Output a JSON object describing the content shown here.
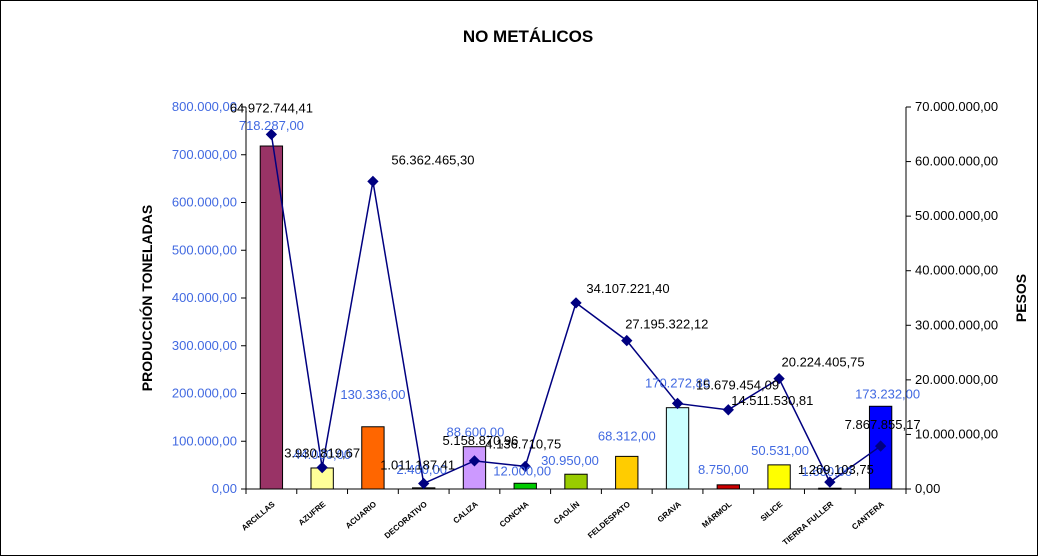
{
  "chart_data": {
    "type": "bar",
    "title": "NO METÁLICOS",
    "ylabel": "PRODUCCIÓN TONELADAS",
    "y2label": "PESOS",
    "ylim": [
      0,
      800000
    ],
    "y2lim": [
      0,
      70000000
    ],
    "yticks": [
      "0,00",
      "100.000,00",
      "200.000,00",
      "300.000,00",
      "400.000,00",
      "500.000,00",
      "600.000,00",
      "700.000,00",
      "800.000,00"
    ],
    "y2ticks": [
      "0,00",
      "10.000.000,00",
      "20.000.000,00",
      "30.000.000,00",
      "40.000.000,00",
      "50.000.000,00",
      "60.000.000,00",
      "70.000.000,00"
    ],
    "categories": [
      "ARCILLAS",
      "AZUFRE",
      "ACUARIO",
      "DECORATIVO",
      "CALIZA",
      "CONCHA",
      "CAOLÍN",
      "FELDESPATO",
      "GRAVA",
      "MÁRMOL",
      "SILICE",
      "TIERRA FULLER",
      "CANTERA"
    ],
    "series": [
      {
        "type": "bar",
        "values": [
          718287,
          44000,
          130336,
          2400,
          88600,
          12000,
          30950,
          68312,
          170272.8,
          8750,
          50531,
          1600,
          173232
        ],
        "labels": [
          "718.287,00",
          "44.000,00",
          "130.336,00",
          "2.400,00",
          "88.600,00",
          "12.000,00",
          "30.950,00",
          "68.312,00",
          "170.272,80",
          "8.750,00",
          "50.531,00",
          "1.600,00",
          "173.232,00"
        ],
        "colors": [
          "#993366",
          "#ffff99",
          "#ff6600",
          "#333333",
          "#cc99ff",
          "#00cc00",
          "#99cc00",
          "#ffcc00",
          "#ccffff",
          "#cc0000",
          "#ffff00",
          "#333333",
          "#0000ff"
        ]
      },
      {
        "type": "line",
        "axis": "right",
        "values": [
          64972744.41,
          3930819.67,
          56362465.3,
          1011187.41,
          5158870.96,
          4136710.75,
          34107221.4,
          27195322.12,
          15679454.09,
          14511530.81,
          20224405.75,
          1269103.75,
          7867855.17
        ],
        "labels": [
          "64.972.744,41",
          "3.930.819,67",
          "56.362.465,30",
          "1.011.187,41",
          "5.158.870,96",
          "4.136.710,75",
          "34.107.221,40",
          "27.195.322,12",
          "15.679.454,09",
          "14.511.530,81",
          "20.224.405,75",
          "1.269.103,75",
          "7.867.855,17"
        ],
        "color": "#000080"
      }
    ],
    "grid": false,
    "legend": "none"
  }
}
